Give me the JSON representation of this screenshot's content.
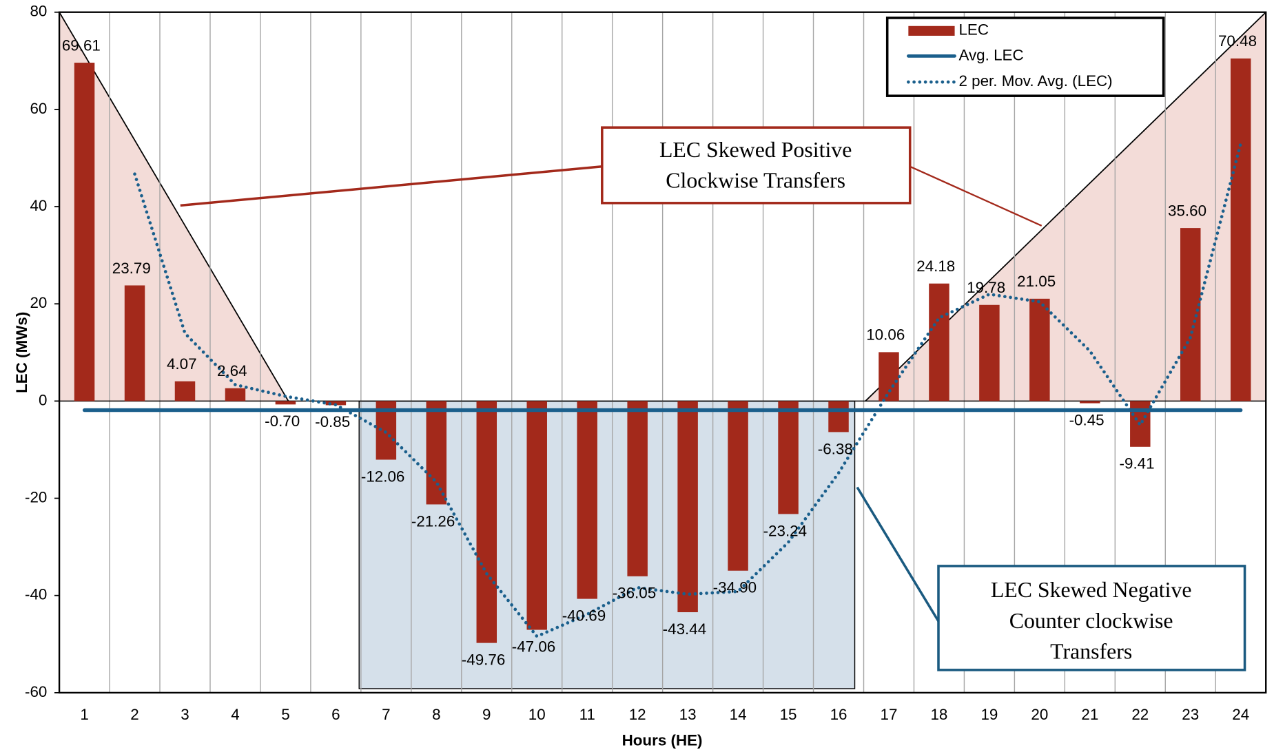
{
  "chart_data": {
    "type": "bar",
    "xlabel": "Hours (HE)",
    "ylabel": "LEC (MWs)",
    "categories": [
      "1",
      "2",
      "3",
      "4",
      "5",
      "6",
      "7",
      "8",
      "9",
      "10",
      "11",
      "12",
      "13",
      "14",
      "15",
      "16",
      "17",
      "18",
      "19",
      "20",
      "21",
      "22",
      "23",
      "24"
    ],
    "series": [
      {
        "name": "LEC",
        "type": "bar",
        "color": "#a3291b",
        "values": [
          69.61,
          23.79,
          4.07,
          2.64,
          -0.7,
          -0.85,
          -12.06,
          -21.26,
          -49.76,
          -47.06,
          -40.69,
          -36.05,
          -43.44,
          -34.9,
          -23.24,
          -6.38,
          10.06,
          24.18,
          19.78,
          21.05,
          -0.45,
          -9.41,
          35.6,
          70.48
        ],
        "value_labels": [
          "69.61",
          "23.79",
          "4.07",
          "2.64",
          "-0.70",
          "-0.85",
          "-12.06",
          "-21.26",
          "-49.76",
          "-47.06",
          "-40.69",
          "-36.05",
          "-43.44",
          "-34.90",
          "-23.24",
          "-6.38",
          "10.06",
          "24.18",
          "19.78",
          "21.05",
          "-0.45",
          "-9.41",
          "35.60",
          "70.48"
        ]
      },
      {
        "name": "Avg. LEC",
        "type": "line",
        "style": "solid",
        "color": "#1a5f8c",
        "values": [
          -1.87,
          -1.87,
          -1.87,
          -1.87,
          -1.87,
          -1.87,
          -1.87,
          -1.87,
          -1.87,
          -1.87,
          -1.87,
          -1.87,
          -1.87,
          -1.87,
          -1.87,
          -1.87,
          -1.87,
          -1.87,
          -1.87,
          -1.87,
          -1.87,
          -1.87,
          -1.87,
          -1.87
        ]
      },
      {
        "name": "2 per. Mov. Avg. (LEC)",
        "type": "line",
        "style": "dotted",
        "color": "#1a5f8c",
        "values": [
          null,
          46.7,
          13.93,
          3.355,
          0.97,
          -0.775,
          -6.455,
          -16.66,
          -35.51,
          -48.41,
          -43.875,
          -38.37,
          -39.745,
          -39.17,
          -29.07,
          -14.81,
          1.84,
          17.12,
          21.98,
          20.415,
          10.3,
          -4.93,
          13.095,
          53.04
        ]
      }
    ],
    "ylim": [
      -60,
      80
    ],
    "yticks": [
      -60,
      -40,
      -20,
      0,
      20,
      40,
      60,
      80
    ],
    "x_grid": true,
    "legend": "top-right",
    "annotations": [
      {
        "text": [
          "LEC Skewed Positive",
          "Clockwise Transfers"
        ],
        "color": "#a3291b"
      },
      {
        "text": [
          "LEC Skewed Negative",
          "Counter clockwise",
          "Transfers"
        ],
        "color": "#1a5a80"
      }
    ]
  }
}
